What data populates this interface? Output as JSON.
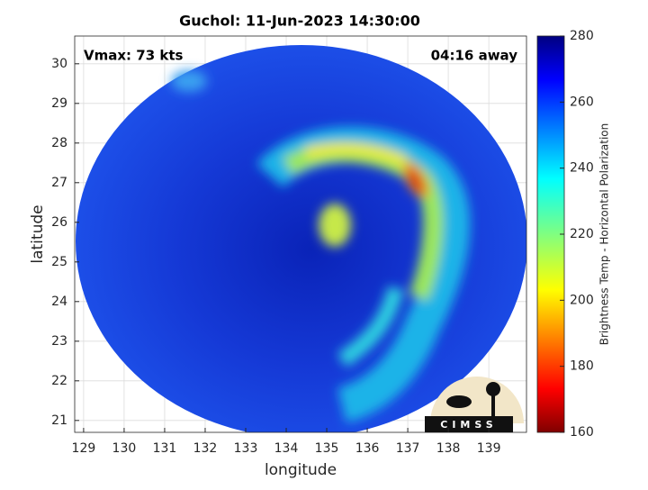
{
  "chart_data": {
    "type": "image-map",
    "title": "Guchol: 11-Jun-2023 14:30:00",
    "annotations": [
      "Vmax: 73 kts",
      "04:16 away"
    ],
    "xlabel": "longitude",
    "ylabel": "latitude",
    "xlim": [
      128.78,
      139.93
    ],
    "ylim": [
      20.7,
      30.7
    ],
    "xticks": [
      129,
      130,
      131,
      132,
      133,
      134,
      135,
      136,
      137,
      138,
      139
    ],
    "yticks": [
      21,
      22,
      23,
      24,
      25,
      26,
      27,
      28,
      29,
      30
    ],
    "grid": true,
    "colorbar": {
      "label": "Brightness Temp - Horizontal Polarization",
      "colormap": "jet",
      "lim": [
        160,
        280
      ],
      "ticks": [
        160,
        180,
        200,
        220,
        240,
        260,
        280
      ]
    },
    "logo_text": "CIMSS"
  }
}
